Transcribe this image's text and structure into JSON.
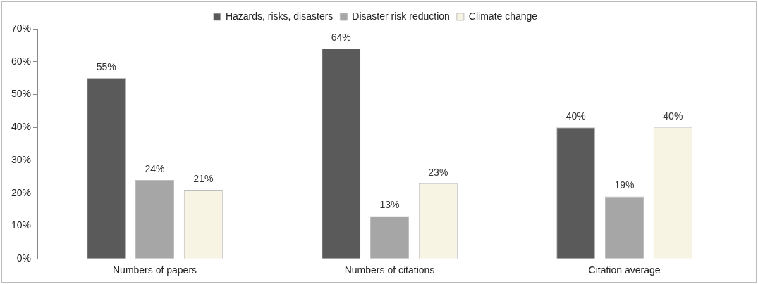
{
  "chart_data": {
    "type": "bar",
    "categories": [
      "Numbers of papers",
      "Numbers of citations",
      "Citation average"
    ],
    "series": [
      {
        "name": "Hazards, risks, disasters",
        "color": "#5a5a5a",
        "values": [
          55,
          64,
          40
        ],
        "value_labels": [
          "55%",
          "64%",
          "40%"
        ]
      },
      {
        "name": "Disaster risk reduction",
        "color": "#a6a6a6",
        "values": [
          24,
          13,
          19
        ],
        "value_labels": [
          "24%",
          "13%",
          "19%"
        ]
      },
      {
        "name": "Climate change",
        "color": "#f8f4e4",
        "values": [
          21,
          23,
          40
        ],
        "value_labels": [
          "21%",
          "23%",
          "40%"
        ]
      }
    ],
    "ylim": [
      0,
      70
    ],
    "yticks": [
      {
        "value": 0,
        "label": "0%"
      },
      {
        "value": 10,
        "label": "10%"
      },
      {
        "value": 20,
        "label": "20%"
      },
      {
        "value": 30,
        "label": "30%"
      },
      {
        "value": 40,
        "label": "40%"
      },
      {
        "value": 50,
        "label": "50%"
      },
      {
        "value": 60,
        "label": "60%"
      },
      {
        "value": 70,
        "label": "70%"
      }
    ],
    "grid": false,
    "legend": "top"
  }
}
